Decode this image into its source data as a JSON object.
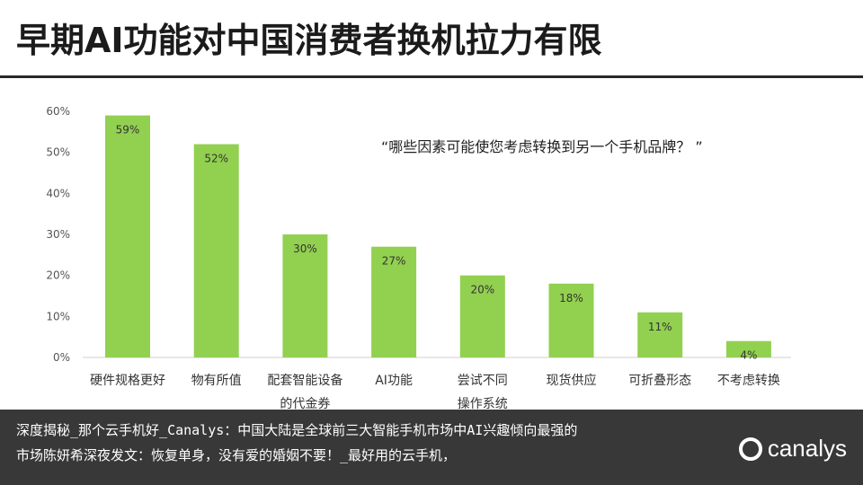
{
  "title": "早期AI功能对中国消费者换机拉力有限",
  "question": "“哪些因素可能使您考虑转换到另一个手机品牌？ ”",
  "chart_data": {
    "type": "bar",
    "categories": [
      "硬件规格更好",
      "物有所值",
      "配套智能设备的代金券",
      "AI功能",
      "尝试不同操作系统",
      "现货供应",
      "可折叠形态",
      "不考虑转换"
    ],
    "category_lines": [
      [
        "硬件规格更好"
      ],
      [
        "物有所值"
      ],
      [
        "配套智能设备",
        "的代金券"
      ],
      [
        "AI功能"
      ],
      [
        "尝试不同",
        "操作系统"
      ],
      [
        "现货供应"
      ],
      [
        "可折叠形态"
      ],
      [
        "不考虑转换"
      ]
    ],
    "values": [
      59,
      52,
      30,
      27,
      20,
      18,
      11,
      4
    ],
    "data_labels": [
      "59%",
      "52%",
      "30%",
      "27%",
      "20%",
      "18%",
      "11%",
      "4%"
    ],
    "y_ticks": [
      "0%",
      "10%",
      "20%",
      "30%",
      "40%",
      "50%",
      "60%"
    ],
    "ylim": [
      0,
      60
    ],
    "bar_color": "#92d050",
    "grid": false
  },
  "caption": {
    "line1": "深度揭秘_那个云手机好_Canalys：中国大陆是全球前三大智能手机市场中AI兴趣倾向最强的",
    "line2": "市场陈妍希深夜发文：恢复单身，没有爱的婚姻不要！_最好用的云手机，"
  },
  "logo": {
    "text": "canalys",
    "icon": "canalys-logo-icon"
  }
}
